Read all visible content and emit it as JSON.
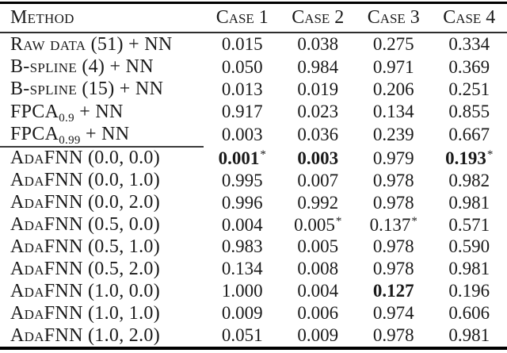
{
  "page": {
    "background_color": "#ffffff",
    "text_color": "#1a1a1a",
    "rule_color": "#000000"
  },
  "table": {
    "footnote_marker": "*",
    "columns": [
      "Method",
      "Case 1",
      "Case 2",
      "Case 3",
      "Case 4"
    ],
    "groups": [
      {
        "name": "baseline-methods",
        "rows": [
          {
            "method": [
              {
                "t": "Raw data (51) + NN"
              }
            ],
            "values": [
              {
                "v": "0.015"
              },
              {
                "v": "0.038"
              },
              {
                "v": "0.275"
              },
              {
                "v": "0.334"
              }
            ]
          },
          {
            "method": [
              {
                "t": "B-spline (4) + NN"
              }
            ],
            "values": [
              {
                "v": "0.050"
              },
              {
                "v": "0.984"
              },
              {
                "v": "0.971"
              },
              {
                "v": "0.369"
              }
            ]
          },
          {
            "method": [
              {
                "t": "B-spline (15) + NN"
              }
            ],
            "values": [
              {
                "v": "0.013"
              },
              {
                "v": "0.019"
              },
              {
                "v": "0.206"
              },
              {
                "v": "0.251"
              }
            ]
          },
          {
            "method": [
              {
                "t": "FPCA"
              },
              {
                "t": "0.9",
                "sub": true
              },
              {
                "t": " + NN"
              }
            ],
            "values": [
              {
                "v": "0.917"
              },
              {
                "v": "0.023"
              },
              {
                "v": "0.134"
              },
              {
                "v": "0.855"
              }
            ]
          },
          {
            "method": [
              {
                "t": "FPCA"
              },
              {
                "t": "0.99",
                "sub": true
              },
              {
                "t": " + NN"
              }
            ],
            "values": [
              {
                "v": "0.003"
              },
              {
                "v": "0.036"
              },
              {
                "v": "0.239"
              },
              {
                "v": "0.667"
              }
            ]
          }
        ]
      },
      {
        "name": "adafnn-methods",
        "rows": [
          {
            "method": [
              {
                "t": "AdaFNN (0.0, 0.0)"
              }
            ],
            "values": [
              {
                "v": "0.001",
                "bold": true,
                "star": true
              },
              {
                "v": "0.003",
                "bold": true
              },
              {
                "v": "0.979"
              },
              {
                "v": "0.193",
                "bold": true,
                "star": true
              }
            ]
          },
          {
            "method": [
              {
                "t": "AdaFNN (0.0, 1.0)"
              }
            ],
            "values": [
              {
                "v": "0.995"
              },
              {
                "v": "0.007"
              },
              {
                "v": "0.978"
              },
              {
                "v": "0.982"
              }
            ]
          },
          {
            "method": [
              {
                "t": "AdaFNN (0.0, 2.0)"
              }
            ],
            "values": [
              {
                "v": "0.996"
              },
              {
                "v": "0.992"
              },
              {
                "v": "0.978"
              },
              {
                "v": "0.981"
              }
            ]
          },
          {
            "method": [
              {
                "t": "AdaFNN (0.5, 0.0)"
              }
            ],
            "values": [
              {
                "v": "0.004"
              },
              {
                "v": "0.005",
                "star": true
              },
              {
                "v": "0.137",
                "star": true
              },
              {
                "v": "0.571"
              }
            ]
          },
          {
            "method": [
              {
                "t": "AdaFNN (0.5, 1.0)"
              }
            ],
            "values": [
              {
                "v": "0.983"
              },
              {
                "v": "0.005"
              },
              {
                "v": "0.978"
              },
              {
                "v": "0.590"
              }
            ]
          },
          {
            "method": [
              {
                "t": "AdaFNN (0.5, 2.0)"
              }
            ],
            "values": [
              {
                "v": "0.134"
              },
              {
                "v": "0.008"
              },
              {
                "v": "0.978"
              },
              {
                "v": "0.981"
              }
            ]
          },
          {
            "method": [
              {
                "t": "AdaFNN (1.0, 0.0)"
              }
            ],
            "values": [
              {
                "v": "1.000"
              },
              {
                "v": "0.004"
              },
              {
                "v": "0.127",
                "bold": true
              },
              {
                "v": "0.196"
              }
            ]
          },
          {
            "method": [
              {
                "t": "AdaFNN (1.0, 1.0)"
              }
            ],
            "values": [
              {
                "v": "0.009"
              },
              {
                "v": "0.006"
              },
              {
                "v": "0.974"
              },
              {
                "v": "0.606"
              }
            ]
          },
          {
            "method": [
              {
                "t": "AdaFNN (1.0, 2.0)"
              }
            ],
            "values": [
              {
                "v": "0.051"
              },
              {
                "v": "0.009"
              },
              {
                "v": "0.978"
              },
              {
                "v": "0.981"
              }
            ]
          }
        ]
      }
    ]
  }
}
